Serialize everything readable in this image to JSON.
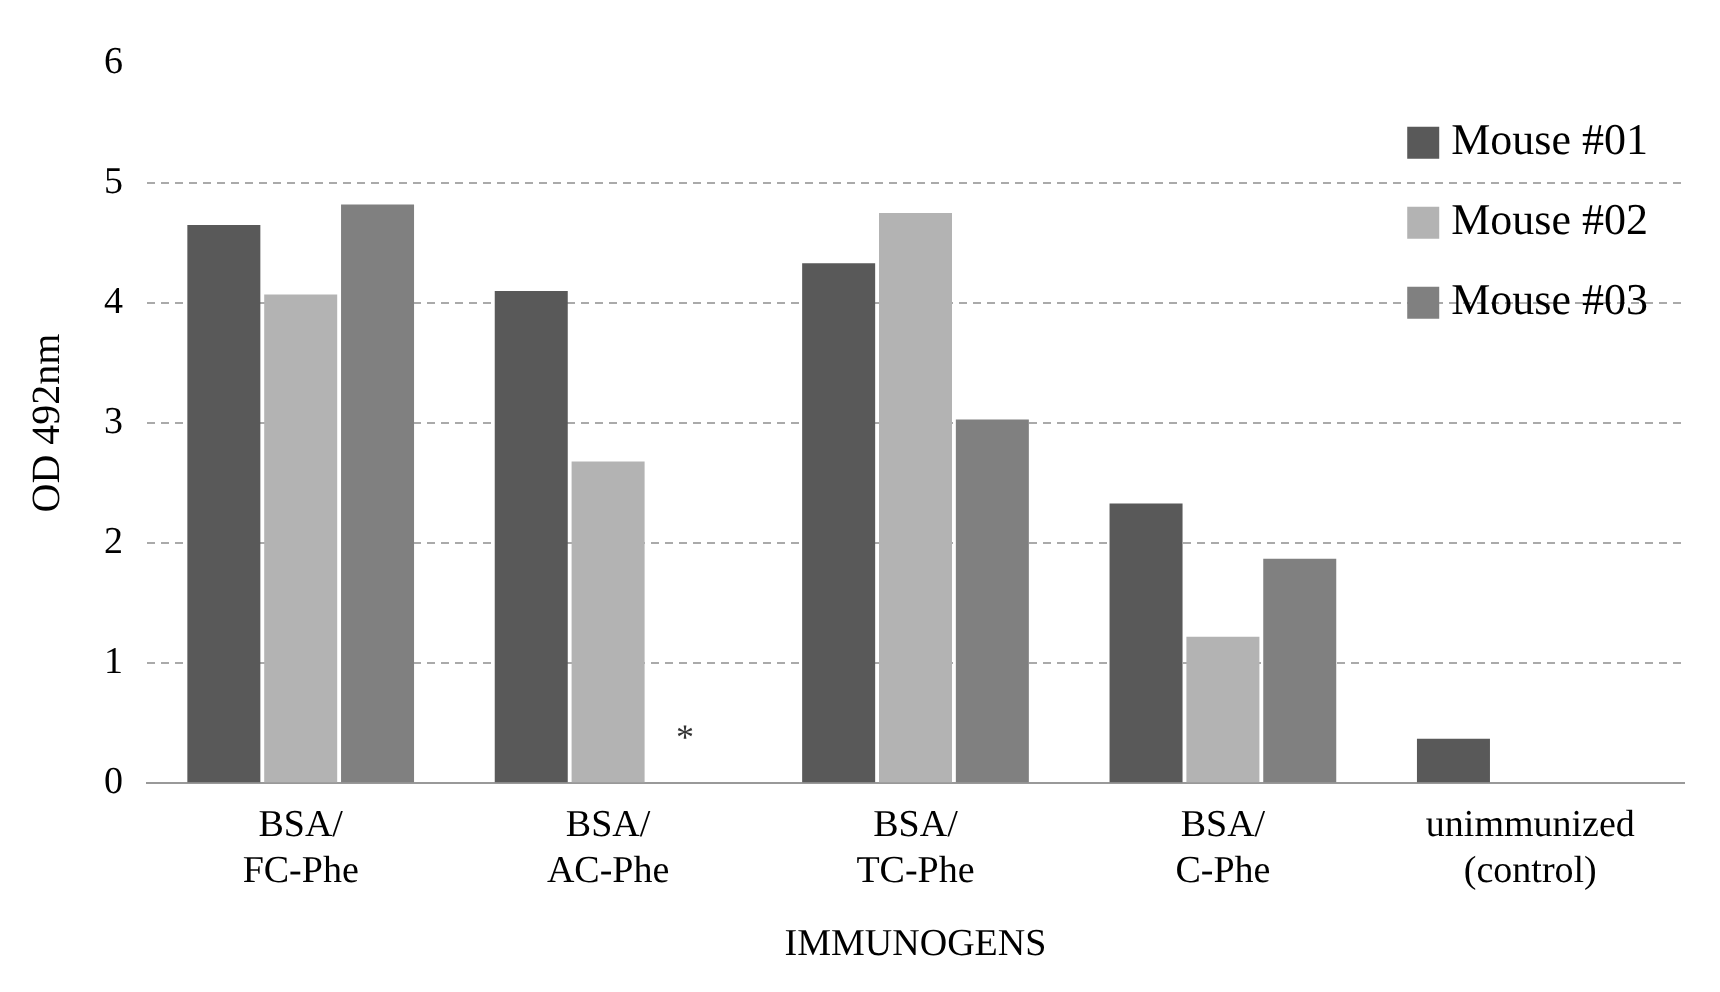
{
  "chart_data": {
    "type": "bar",
    "xlabel": "IMMUNOGENS",
    "ylabel": "OD 492nm",
    "categories": [
      "BSA/\nFC-Phe",
      "BSA/\nAC-Phe",
      "BSA/\nTC-Phe",
      "BSA/\nC-Phe",
      "unimmunized\n(control)"
    ],
    "series": [
      {
        "name": "Mouse #01",
        "color": "#595959",
        "values": [
          4.65,
          4.1,
          4.33,
          2.33,
          0.37
        ]
      },
      {
        "name": "Mouse #02",
        "color": "#b3b3b3",
        "values": [
          4.07,
          2.68,
          4.75,
          1.22,
          null
        ]
      },
      {
        "name": "Mouse #03",
        "color": "#808080",
        "values": [
          4.82,
          null,
          3.03,
          1.87,
          null
        ]
      }
    ],
    "ylim": [
      0,
      6
    ],
    "yticks": [
      0,
      1,
      2,
      3,
      4,
      5,
      6
    ],
    "grid": "y",
    "legend": "top right",
    "annotations": [
      "*"
    ]
  }
}
